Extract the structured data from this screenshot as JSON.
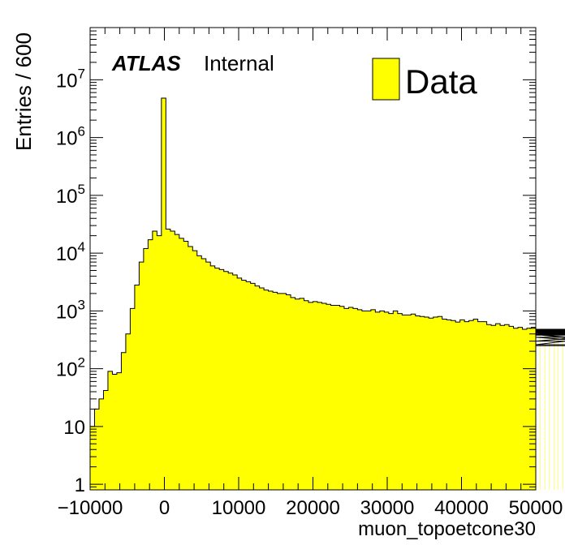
{
  "chart_data": {
    "type": "bar",
    "histogram": true,
    "ylabel": "Entries / 600",
    "xlabel": "muon_topoetcone30",
    "xlim": [
      -10000,
      50000
    ],
    "ylim": [
      0.8,
      80000000
    ],
    "yscale": "log",
    "bin_width": 600,
    "x_ticks": [
      -10000,
      0,
      10000,
      20000,
      30000,
      40000,
      50000
    ],
    "y_ticks": [
      {
        "value": 1,
        "base": "1",
        "exp": ""
      },
      {
        "value": 10,
        "base": "10",
        "exp": ""
      },
      {
        "value": 100,
        "base": "10",
        "exp": "2"
      },
      {
        "value": 1000,
        "base": "10",
        "exp": "3"
      },
      {
        "value": 10000,
        "base": "10",
        "exp": "4"
      },
      {
        "value": 100000,
        "base": "10",
        "exp": "5"
      },
      {
        "value": 1000000,
        "base": "10",
        "exp": "6"
      },
      {
        "value": 10000000,
        "base": "10",
        "exp": "7"
      }
    ],
    "legend": {
      "label": "Data",
      "position": "top-right"
    },
    "annotation": {
      "bold": "ATLAS",
      "normal": "Internal"
    },
    "series": [
      {
        "fill": "#ffff00",
        "values": [
          10,
          20,
          30,
          42,
          90,
          80,
          85,
          190,
          400,
          1100,
          2800,
          7000,
          12000,
          17000,
          24000,
          20000,
          4800000,
          26000,
          24000,
          21000,
          18000,
          16000,
          13000,
          11000,
          9000,
          8000,
          7000,
          6000,
          5500,
          5200,
          4800,
          4500,
          4200,
          3700,
          3400,
          3200,
          3000,
          2700,
          2500,
          2300,
          2200,
          2100,
          2000,
          2000,
          1900,
          1700,
          1600,
          1650,
          1500,
          1400,
          1450,
          1400,
          1350,
          1300,
          1250,
          1250,
          1200,
          1100,
          1150,
          1100,
          1050,
          1000,
          1000,
          1050,
          950,
          1000,
          950,
          900,
          1000,
          900,
          850,
          850,
          880,
          820,
          800,
          780,
          750,
          780,
          800,
          720,
          700,
          680,
          640,
          700,
          650,
          680,
          720,
          650,
          650,
          580,
          560,
          600,
          560,
          580,
          540,
          500,
          520,
          480,
          500,
          520,
          440,
          460,
          420,
          430,
          460,
          440,
          450,
          420,
          480,
          470,
          460,
          450,
          450,
          430,
          420,
          400,
          410,
          390,
          300,
          400,
          380,
          390,
          260,
          420,
          350,
          250
        ]
      }
    ]
  }
}
